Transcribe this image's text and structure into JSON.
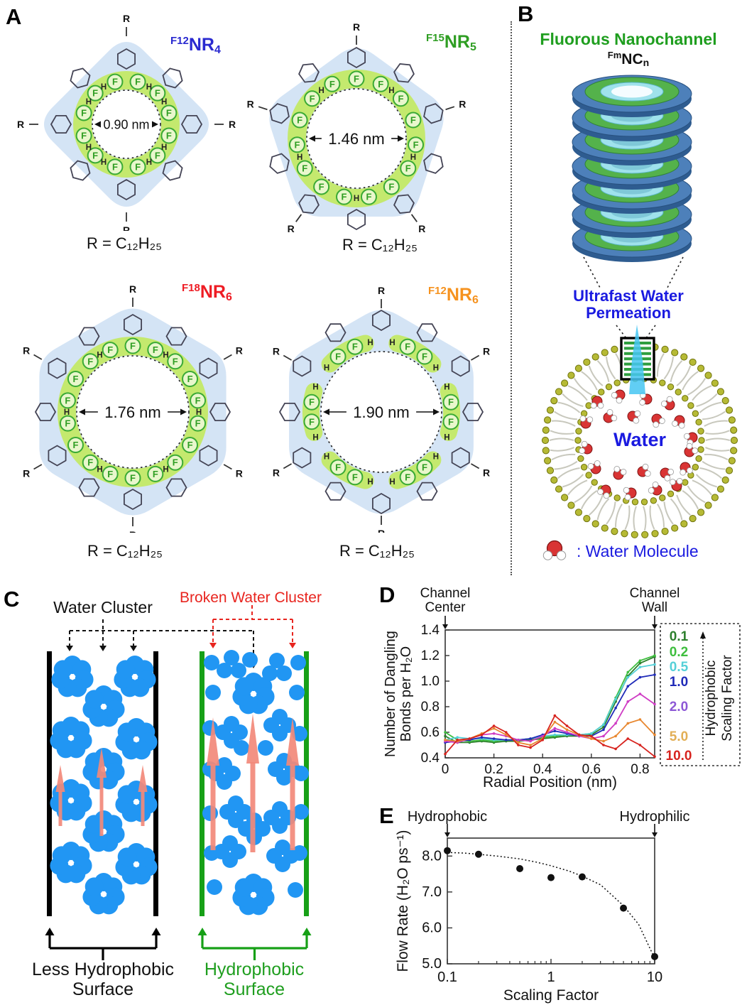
{
  "panels": {
    "a": "A",
    "b": "B",
    "c": "C",
    "d": "D",
    "e": "E"
  },
  "panel_a": {
    "f_label": "F",
    "h_label": "H",
    "r_label": "R",
    "colors": {
      "blob": "#d4e4f5",
      "ring_green": "#c4e96e",
      "f_stroke": "#3aaa35",
      "f_fill": "#e9f7cc",
      "f_text": "#2f9e23"
    },
    "macrocycles": [
      {
        "sup": "F12",
        "base": "NR",
        "sub": "4",
        "name_color": "#2a2ad0",
        "shape": "diamond",
        "diameter": "0.90 nm",
        "caption": "R = C₁₂H₂₅",
        "f_count": 12,
        "ring": "full"
      },
      {
        "sup": "F15",
        "base": "NR",
        "sub": "5",
        "name_color": "#2f9e23",
        "shape": "pentagon",
        "diameter": "1.46 nm",
        "caption": "R = C₁₂H₂₅",
        "f_count": 15,
        "ring": "full"
      },
      {
        "sup": "F18",
        "base": "NR",
        "sub": "6",
        "name_color": "#ee1c24",
        "shape": "hexagon",
        "diameter": "1.76 nm",
        "caption": "R = C₁₂H₂₅",
        "f_count": 18,
        "ring": "full"
      },
      {
        "sup": "F12",
        "base": "NR",
        "sub": "6",
        "name_color": "#f6921e",
        "shape": "hexagon",
        "diameter": "1.90 nm",
        "caption": "R = C₁₂H₂₅",
        "f_count": 12,
        "ring": "partial"
      }
    ]
  },
  "panel_b": {
    "title": "Fluorous Nanochannel",
    "title_color": "#1f9e1f",
    "formula": {
      "sup": "Fm",
      "base": "NC",
      "sub": "n"
    },
    "ring_count": 7,
    "permeation_line1": "Ultrafast Water",
    "permeation_line2": "Permeation",
    "permeation_color": "#1a1ae0",
    "water_label": "Water",
    "water_label_color": "#1a1ae0",
    "legend_label": ": Water Molecule",
    "legend_color": "#1a1ae0"
  },
  "panel_c": {
    "left_pointer_label": "Water Cluster",
    "left_pointer_color": "#111111",
    "right_pointer_label": "Broken Water Cluster",
    "right_pointer_color": "#e8251f",
    "left_caption_line1": "Less Hydrophobic",
    "left_caption_line2": "Surface",
    "left_caption_color": "#111111",
    "right_caption_line1": "Hydrophobic",
    "right_caption_line2": "Surface",
    "right_caption_color": "#1f9e1f",
    "cluster_color": "#2196f3",
    "flow_arrow_color": "#f2897a",
    "left_wall_color": "#000000",
    "right_wall_color": "#17a017"
  },
  "chart_data": [
    {
      "id": "dangling_bonds",
      "type": "line",
      "xlabel": "Radial Position (nm)",
      "ylabel": "Number of Dangling Bonds per H₂O",
      "ylabel_lines": [
        "Number of Dangling",
        "Bonds per H₂O"
      ],
      "xlim": [
        0,
        0.86
      ],
      "ylim": [
        0.4,
        1.4
      ],
      "xticks": [
        0,
        0.2,
        0.4,
        0.6,
        0.8
      ],
      "xtick_labels": [
        "0",
        "0.2",
        "0.4",
        "0.6",
        "0.8"
      ],
      "yticks": [
        0.4,
        0.6,
        0.8,
        1.0,
        1.2,
        1.4
      ],
      "grid": false,
      "legend_position": "right",
      "legend_title_lines": [
        "Hydrophobic",
        "Scaling Factor"
      ],
      "annotations": [
        {
          "text": "Channel Center",
          "x": 0
        },
        {
          "text": "Channel Wall",
          "x": 0.86
        }
      ],
      "x": [
        0,
        0.05,
        0.1,
        0.15,
        0.2,
        0.25,
        0.3,
        0.35,
        0.4,
        0.45,
        0.5,
        0.55,
        0.6,
        0.65,
        0.7,
        0.75,
        0.8,
        0.86
      ],
      "series": [
        {
          "name": "0.1",
          "color": "#2c7f2c",
          "legend_color": "#2c7f2c",
          "values": [
            0.57,
            0.52,
            0.52,
            0.53,
            0.52,
            0.53,
            0.53,
            0.54,
            0.55,
            0.56,
            0.57,
            0.57,
            0.58,
            0.64,
            0.84,
            1.04,
            1.14,
            1.19
          ]
        },
        {
          "name": "0.2",
          "color": "#3ebe3e",
          "legend_color": "#3ebe3e",
          "values": [
            0.6,
            0.54,
            0.53,
            0.54,
            0.53,
            0.54,
            0.54,
            0.55,
            0.56,
            0.57,
            0.58,
            0.58,
            0.59,
            0.66,
            0.87,
            1.07,
            1.16,
            1.2
          ]
        },
        {
          "name": "0.5",
          "color": "#55d0d8",
          "legend_color": "#55d0d8",
          "values": [
            0.54,
            0.56,
            0.55,
            0.55,
            0.54,
            0.54,
            0.54,
            0.55,
            0.57,
            0.58,
            0.58,
            0.58,
            0.59,
            0.66,
            0.86,
            1.03,
            1.11,
            1.13
          ]
        },
        {
          "name": "1.0",
          "color": "#1f2ab8",
          "legend_color": "#1f2ab8",
          "values": [
            0.52,
            0.53,
            0.54,
            0.56,
            0.55,
            0.54,
            0.54,
            0.55,
            0.58,
            0.61,
            0.59,
            0.57,
            0.57,
            0.62,
            0.79,
            0.96,
            1.03,
            1.05
          ]
        },
        {
          "name": "2.0",
          "color": "#cf3cc4",
          "legend_color": "#8d58d6",
          "values": [
            0.53,
            0.52,
            0.55,
            0.58,
            0.59,
            0.57,
            0.54,
            0.53,
            0.57,
            0.63,
            0.6,
            0.57,
            0.55,
            0.57,
            0.67,
            0.84,
            0.9,
            0.82
          ]
        },
        {
          "name": "5.0",
          "color": "#e8872f",
          "legend_color": "#e2af56",
          "values": [
            0.54,
            0.53,
            0.55,
            0.59,
            0.63,
            0.58,
            0.52,
            0.5,
            0.55,
            0.68,
            0.62,
            0.58,
            0.55,
            0.53,
            0.57,
            0.67,
            0.7,
            0.58
          ]
        },
        {
          "name": "10.0",
          "color": "#d7241f",
          "legend_color": "#d7241f",
          "values": [
            0.43,
            0.54,
            0.55,
            0.58,
            0.65,
            0.6,
            0.5,
            0.48,
            0.54,
            0.73,
            0.65,
            0.58,
            0.57,
            0.5,
            0.47,
            0.55,
            0.5,
            0.41
          ]
        }
      ]
    },
    {
      "id": "flow_rate",
      "type": "scatter",
      "xlabel": "Scaling Factor",
      "ylabel": "Flow Rate (H₂O ps⁻¹)",
      "xscale": "log",
      "xlim": [
        0.1,
        10
      ],
      "ylim": [
        5.0,
        8.5
      ],
      "xticks": [
        0.1,
        1,
        10
      ],
      "xtick_labels": [
        "0.1",
        "1",
        "10"
      ],
      "yticks": [
        5.0,
        6.0,
        7.0,
        8.0
      ],
      "grid": false,
      "annotations": [
        {
          "text": "Hydrophobic",
          "x": 0.1
        },
        {
          "text": "Hydrophilic",
          "x": 10
        }
      ],
      "x": [
        0.1,
        0.2,
        0.5,
        1,
        2,
        5,
        10
      ],
      "y": [
        8.15,
        8.05,
        7.65,
        7.4,
        7.42,
        6.55,
        5.2
      ],
      "fit_curve": {
        "style": "dotted",
        "x": [
          0.1,
          0.15,
          0.2,
          0.3,
          0.5,
          0.7,
          1,
          1.5,
          2,
          3,
          5,
          7,
          10
        ],
        "y": [
          8.1,
          8.08,
          8.05,
          8.0,
          7.92,
          7.84,
          7.73,
          7.58,
          7.44,
          7.2,
          6.62,
          6.1,
          5.15
        ]
      }
    }
  ]
}
